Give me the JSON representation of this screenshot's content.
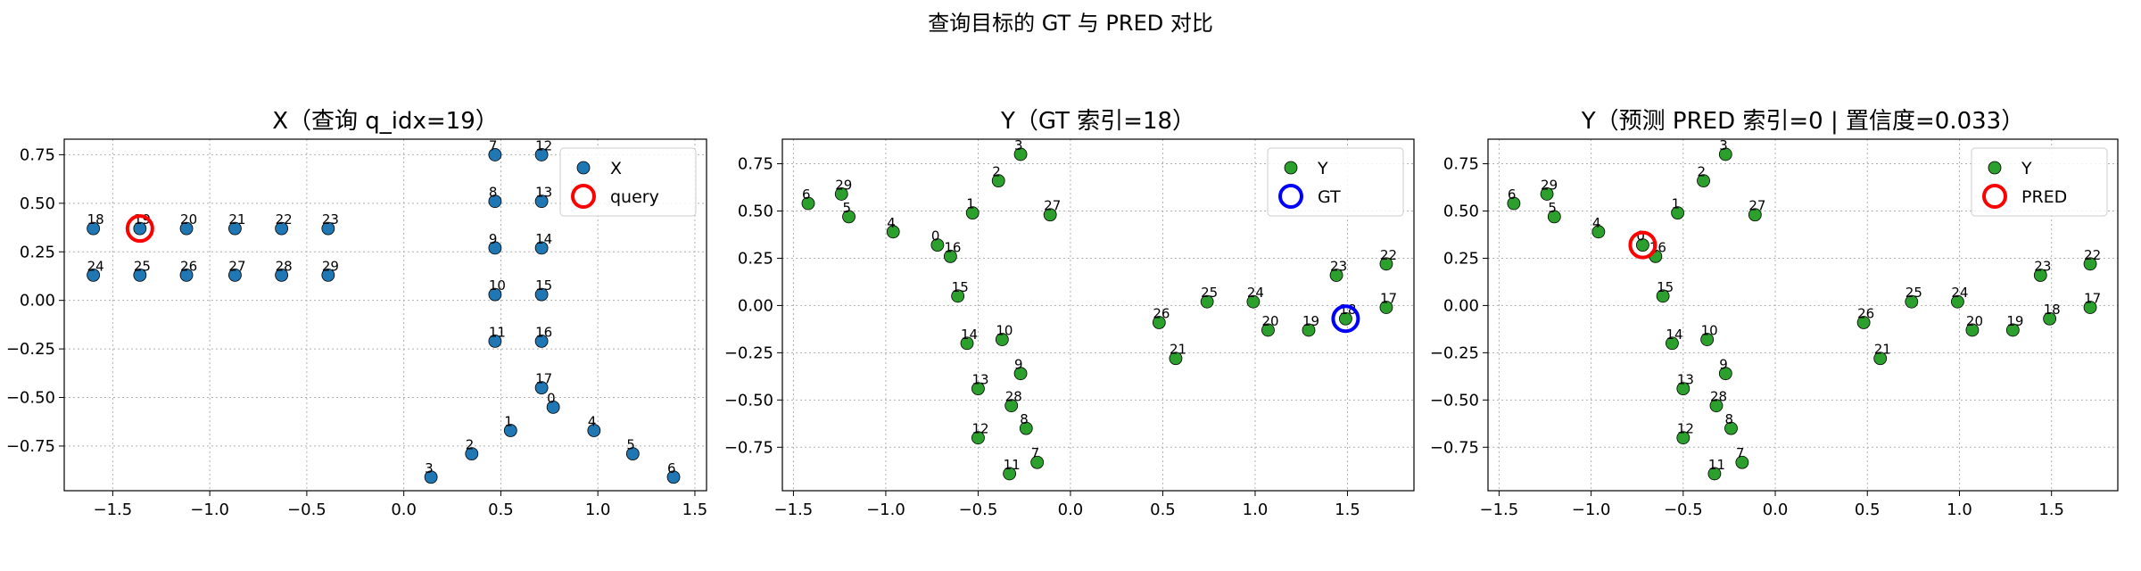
{
  "suptitle": "查询目标的 GT 与 PRED 对比",
  "chart_data": [
    {
      "type": "scatter",
      "title": "X（查询 q_idx=19）",
      "xlabel": "",
      "ylabel": "",
      "xlim": [
        -1.75,
        1.56
      ],
      "ylim": [
        -0.98,
        0.83
      ],
      "xticks": [
        -1.5,
        -1.0,
        -0.5,
        0.0,
        0.5,
        1.0,
        1.5
      ],
      "xtick_labels": [
        "−1.5",
        "−1.0",
        "−0.5",
        "0.0",
        "0.5",
        "1.0",
        "1.5"
      ],
      "yticks": [
        -0.75,
        -0.5,
        -0.25,
        0.0,
        0.25,
        0.5,
        0.75
      ],
      "ytick_labels": [
        "−0.75",
        "−0.50",
        "−0.25",
        "0.00",
        "0.25",
        "0.50",
        "0.75"
      ],
      "grid": true,
      "legend_position": "top-right",
      "legend": [
        "X",
        "query"
      ],
      "series_color": "#1f77b4",
      "highlight_color": "#ff0000",
      "points": [
        {
          "label": "0",
          "x": 0.77,
          "y": -0.55
        },
        {
          "label": "1",
          "x": 0.55,
          "y": -0.67
        },
        {
          "label": "2",
          "x": 0.35,
          "y": -0.79
        },
        {
          "label": "3",
          "x": 0.14,
          "y": -0.91
        },
        {
          "label": "4",
          "x": 0.98,
          "y": -0.67
        },
        {
          "label": "5",
          "x": 1.18,
          "y": -0.79
        },
        {
          "label": "6",
          "x": 1.39,
          "y": -0.91
        },
        {
          "label": "7",
          "x": 0.47,
          "y": 0.75
        },
        {
          "label": "8",
          "x": 0.47,
          "y": 0.51
        },
        {
          "label": "9",
          "x": 0.47,
          "y": 0.27
        },
        {
          "label": "10",
          "x": 0.47,
          "y": 0.03
        },
        {
          "label": "11",
          "x": 0.47,
          "y": -0.21
        },
        {
          "label": "12",
          "x": 0.71,
          "y": 0.75
        },
        {
          "label": "13",
          "x": 0.71,
          "y": 0.51
        },
        {
          "label": "14",
          "x": 0.71,
          "y": 0.27
        },
        {
          "label": "15",
          "x": 0.71,
          "y": 0.03
        },
        {
          "label": "16",
          "x": 0.71,
          "y": -0.21
        },
        {
          "label": "17",
          "x": 0.71,
          "y": -0.45
        },
        {
          "label": "18",
          "x": -1.6,
          "y": 0.37
        },
        {
          "label": "19",
          "x": -1.36,
          "y": 0.37
        },
        {
          "label": "20",
          "x": -1.12,
          "y": 0.37
        },
        {
          "label": "21",
          "x": -0.87,
          "y": 0.37
        },
        {
          "label": "22",
          "x": -0.63,
          "y": 0.37
        },
        {
          "label": "23",
          "x": -0.39,
          "y": 0.37
        },
        {
          "label": "24",
          "x": -1.6,
          "y": 0.13
        },
        {
          "label": "25",
          "x": -1.36,
          "y": 0.13
        },
        {
          "label": "26",
          "x": -1.12,
          "y": 0.13
        },
        {
          "label": "27",
          "x": -0.87,
          "y": 0.13
        },
        {
          "label": "28",
          "x": -0.63,
          "y": 0.13
        },
        {
          "label": "29",
          "x": -0.39,
          "y": 0.13
        }
      ],
      "highlight": {
        "x": -1.36,
        "y": 0.37
      }
    },
    {
      "type": "scatter",
      "title": "Y（GT 索引=18）",
      "xlabel": "",
      "ylabel": "",
      "xlim": [
        -1.56,
        1.86
      ],
      "ylim": [
        -0.98,
        0.88
      ],
      "xticks": [
        -1.5,
        -1.0,
        -0.5,
        0.0,
        0.5,
        1.0,
        1.5
      ],
      "xtick_labels": [
        "−1.5",
        "−1.0",
        "−0.5",
        "0.0",
        "0.5",
        "1.0",
        "1.5"
      ],
      "yticks": [
        -0.75,
        -0.5,
        -0.25,
        0.0,
        0.25,
        0.5,
        0.75
      ],
      "ytick_labels": [
        "−0.75",
        "−0.50",
        "−0.25",
        "0.00",
        "0.25",
        "0.50",
        "0.75"
      ],
      "grid": true,
      "legend_position": "top-right",
      "legend": [
        "Y",
        "GT"
      ],
      "series_color": "#2ca02c",
      "highlight_color": "#0000ff",
      "points": [
        {
          "label": "0",
          "x": -0.72,
          "y": 0.32
        },
        {
          "label": "1",
          "x": -0.53,
          "y": 0.49
        },
        {
          "label": "2",
          "x": -0.39,
          "y": 0.66
        },
        {
          "label": "3",
          "x": -0.27,
          "y": 0.8
        },
        {
          "label": "4",
          "x": -0.96,
          "y": 0.39
        },
        {
          "label": "5",
          "x": -1.2,
          "y": 0.47
        },
        {
          "label": "6",
          "x": -1.42,
          "y": 0.54
        },
        {
          "label": "7",
          "x": -0.18,
          "y": -0.83
        },
        {
          "label": "8",
          "x": -0.24,
          "y": -0.65
        },
        {
          "label": "9",
          "x": -0.27,
          "y": -0.36
        },
        {
          "label": "10",
          "x": -0.37,
          "y": -0.18
        },
        {
          "label": "11",
          "x": -0.33,
          "y": -0.89
        },
        {
          "label": "12",
          "x": -0.5,
          "y": -0.7
        },
        {
          "label": "13",
          "x": -0.5,
          "y": -0.44
        },
        {
          "label": "14",
          "x": -0.56,
          "y": -0.2
        },
        {
          "label": "15",
          "x": -0.61,
          "y": 0.05
        },
        {
          "label": "16",
          "x": -0.65,
          "y": 0.26
        },
        {
          "label": "17",
          "x": 1.71,
          "y": -0.01
        },
        {
          "label": "18",
          "x": 1.49,
          "y": -0.07
        },
        {
          "label": "19",
          "x": 1.29,
          "y": -0.13
        },
        {
          "label": "20",
          "x": 1.07,
          "y": -0.13
        },
        {
          "label": "21",
          "x": 0.57,
          "y": -0.28
        },
        {
          "label": "22",
          "x": 1.71,
          "y": 0.22
        },
        {
          "label": "23",
          "x": 1.44,
          "y": 0.16
        },
        {
          "label": "24",
          "x": 0.99,
          "y": 0.02
        },
        {
          "label": "25",
          "x": 0.74,
          "y": 0.02
        },
        {
          "label": "26",
          "x": 0.48,
          "y": -0.09
        },
        {
          "label": "27",
          "x": -0.11,
          "y": 0.48
        },
        {
          "label": "28",
          "x": -0.32,
          "y": -0.53
        },
        {
          "label": "29",
          "x": -1.24,
          "y": 0.59
        }
      ],
      "highlight": {
        "x": 1.49,
        "y": -0.07
      }
    },
    {
      "type": "scatter",
      "title": "Y（预测 PRED 索引=0 | 置信度=0.033）",
      "xlabel": "",
      "ylabel": "",
      "xlim": [
        -1.56,
        1.86
      ],
      "ylim": [
        -0.98,
        0.88
      ],
      "xticks": [
        -1.5,
        -1.0,
        -0.5,
        0.0,
        0.5,
        1.0,
        1.5
      ],
      "xtick_labels": [
        "−1.5",
        "−1.0",
        "−0.5",
        "0.0",
        "0.5",
        "1.0",
        "1.5"
      ],
      "yticks": [
        -0.75,
        -0.5,
        -0.25,
        0.0,
        0.25,
        0.5,
        0.75
      ],
      "ytick_labels": [
        "−0.75",
        "−0.50",
        "−0.25",
        "0.00",
        "0.25",
        "0.50",
        "0.75"
      ],
      "grid": true,
      "legend_position": "top-right",
      "legend": [
        "Y",
        "PRED"
      ],
      "series_color": "#2ca02c",
      "highlight_color": "#ff0000",
      "points": [
        {
          "label": "0",
          "x": -0.72,
          "y": 0.32
        },
        {
          "label": "1",
          "x": -0.53,
          "y": 0.49
        },
        {
          "label": "2",
          "x": -0.39,
          "y": 0.66
        },
        {
          "label": "3",
          "x": -0.27,
          "y": 0.8
        },
        {
          "label": "4",
          "x": -0.96,
          "y": 0.39
        },
        {
          "label": "5",
          "x": -1.2,
          "y": 0.47
        },
        {
          "label": "6",
          "x": -1.42,
          "y": 0.54
        },
        {
          "label": "7",
          "x": -0.18,
          "y": -0.83
        },
        {
          "label": "8",
          "x": -0.24,
          "y": -0.65
        },
        {
          "label": "9",
          "x": -0.27,
          "y": -0.36
        },
        {
          "label": "10",
          "x": -0.37,
          "y": -0.18
        },
        {
          "label": "11",
          "x": -0.33,
          "y": -0.89
        },
        {
          "label": "12",
          "x": -0.5,
          "y": -0.7
        },
        {
          "label": "13",
          "x": -0.5,
          "y": -0.44
        },
        {
          "label": "14",
          "x": -0.56,
          "y": -0.2
        },
        {
          "label": "15",
          "x": -0.61,
          "y": 0.05
        },
        {
          "label": "16",
          "x": -0.65,
          "y": 0.26
        },
        {
          "label": "17",
          "x": 1.71,
          "y": -0.01
        },
        {
          "label": "18",
          "x": 1.49,
          "y": -0.07
        },
        {
          "label": "19",
          "x": 1.29,
          "y": -0.13
        },
        {
          "label": "20",
          "x": 1.07,
          "y": -0.13
        },
        {
          "label": "21",
          "x": 0.57,
          "y": -0.28
        },
        {
          "label": "22",
          "x": 1.71,
          "y": 0.22
        },
        {
          "label": "23",
          "x": 1.44,
          "y": 0.16
        },
        {
          "label": "24",
          "x": 0.99,
          "y": 0.02
        },
        {
          "label": "25",
          "x": 0.74,
          "y": 0.02
        },
        {
          "label": "26",
          "x": 0.48,
          "y": -0.09
        },
        {
          "label": "27",
          "x": -0.11,
          "y": 0.48
        },
        {
          "label": "28",
          "x": -0.32,
          "y": -0.53
        },
        {
          "label": "29",
          "x": -1.24,
          "y": 0.59
        }
      ],
      "highlight": {
        "x": -0.72,
        "y": 0.32
      }
    }
  ]
}
